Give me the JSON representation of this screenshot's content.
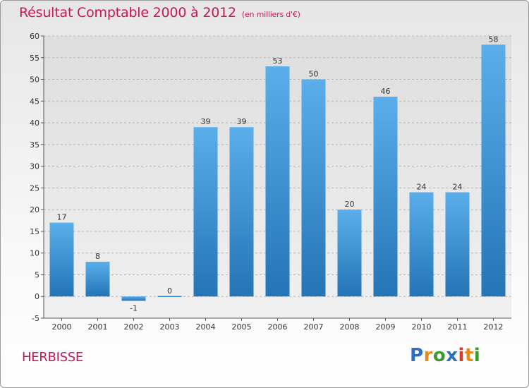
{
  "title": "Résultat Comptable 2000 à 2012",
  "subtitle": "(en milliers d'€)",
  "commune": "HERBISSE",
  "logo": {
    "letters": [
      {
        "ch": "P",
        "color": "#2f6fc0"
      },
      {
        "ch": "r",
        "color": "#e88a1a"
      },
      {
        "ch": "o",
        "color": "#3c9a2e"
      },
      {
        "ch": "x",
        "color": "#2f6fc0"
      },
      {
        "ch": "i",
        "color": "#d63a2a"
      },
      {
        "ch": "t",
        "color": "#e88a1a"
      },
      {
        "ch": "i",
        "color": "#3c9a2e"
      }
    ]
  },
  "chart_data": {
    "type": "bar",
    "title": "Résultat Comptable 2000 à 2012",
    "subtitle": "(en milliers d'€)",
    "categories": [
      "2000",
      "2001",
      "2002",
      "2003",
      "2004",
      "2005",
      "2006",
      "2007",
      "2008",
      "2009",
      "2010",
      "2011",
      "2012"
    ],
    "values": [
      17,
      8,
      -1,
      0,
      39,
      39,
      53,
      50,
      20,
      46,
      24,
      24,
      58
    ],
    "data_labels": [
      "17",
      "8",
      "-1",
      "0",
      "39",
      "39",
      "53",
      "50",
      "20",
      "46",
      "24",
      "24",
      "58"
    ],
    "ylim": [
      -5,
      60
    ],
    "yticks": [
      -5,
      0,
      5,
      10,
      15,
      20,
      25,
      30,
      35,
      40,
      45,
      50,
      55,
      60
    ],
    "grid": true,
    "bar_color": "#3f8fd6",
    "legend": "none"
  }
}
